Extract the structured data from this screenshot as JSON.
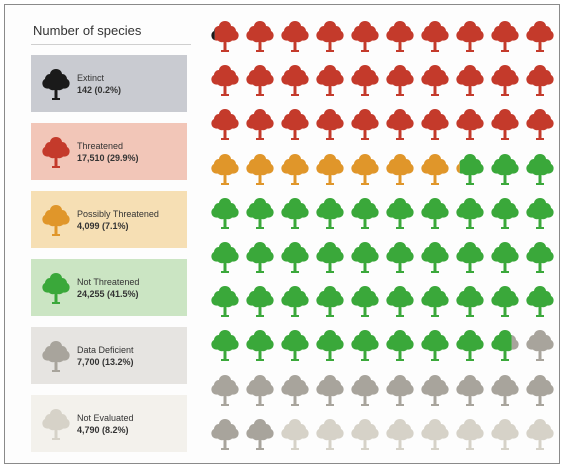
{
  "legend_title": "Number of species",
  "tree_icon": "tree-icon",
  "categories": [
    {
      "key": "extinct",
      "label": "Extinct",
      "value_text": "142 (0.2%)",
      "count": 142,
      "percent": 0.2,
      "color": "#1a1a1a",
      "box_color": "#c9cbd1"
    },
    {
      "key": "threatened",
      "label": "Threatened",
      "value_text": "17,510 (29.9%)",
      "count": 17510,
      "percent": 29.9,
      "color": "#c43a2b",
      "box_color": "#f2c6b8"
    },
    {
      "key": "possibly_threatened",
      "label": "Possibly Threatened",
      "value_text": "4,099 (7.1%)",
      "count": 4099,
      "percent": 7.1,
      "color": "#e0962a",
      "box_color": "#f6dfb4"
    },
    {
      "key": "not_threatened",
      "label": "Not Threatened",
      "value_text": "24,255 (41.5%)",
      "count": 24255,
      "percent": 41.5,
      "color": "#3aa83a",
      "box_color": "#cbe5c3"
    },
    {
      "key": "data_deficient",
      "label": "Data Deficient",
      "value_text": "7,700 (13.2%)",
      "count": 7700,
      "percent": 13.2,
      "color": "#a8a49c",
      "box_color": "#e6e4e1"
    },
    {
      "key": "not_evaluated",
      "label": "Not Evaluated",
      "value_text": "4,790 (8.2%)",
      "count": 4790,
      "percent": 8.2,
      "color": "#d6d2c8",
      "box_color": "#f3f1ec"
    }
  ],
  "chart_data": {
    "type": "waffle",
    "title": "Number of species",
    "total_cells": 100,
    "grid": {
      "columns": 10,
      "rows": 10
    },
    "series": [
      {
        "name": "Extinct",
        "cells": 0.2,
        "count": 142,
        "percent": 0.2
      },
      {
        "name": "Threatened",
        "cells": 29.9,
        "count": 17510,
        "percent": 29.9
      },
      {
        "name": "Possibly Threatened",
        "cells": 7.1,
        "count": 4099,
        "percent": 7.1
      },
      {
        "name": "Not Threatened",
        "cells": 41.5,
        "count": 24255,
        "percent": 41.5
      },
      {
        "name": "Data Deficient",
        "cells": 13.2,
        "count": 7700,
        "percent": 13.2
      },
      {
        "name": "Not Evaluated",
        "cells": 8.2,
        "count": 4790,
        "percent": 8.2
      }
    ]
  }
}
